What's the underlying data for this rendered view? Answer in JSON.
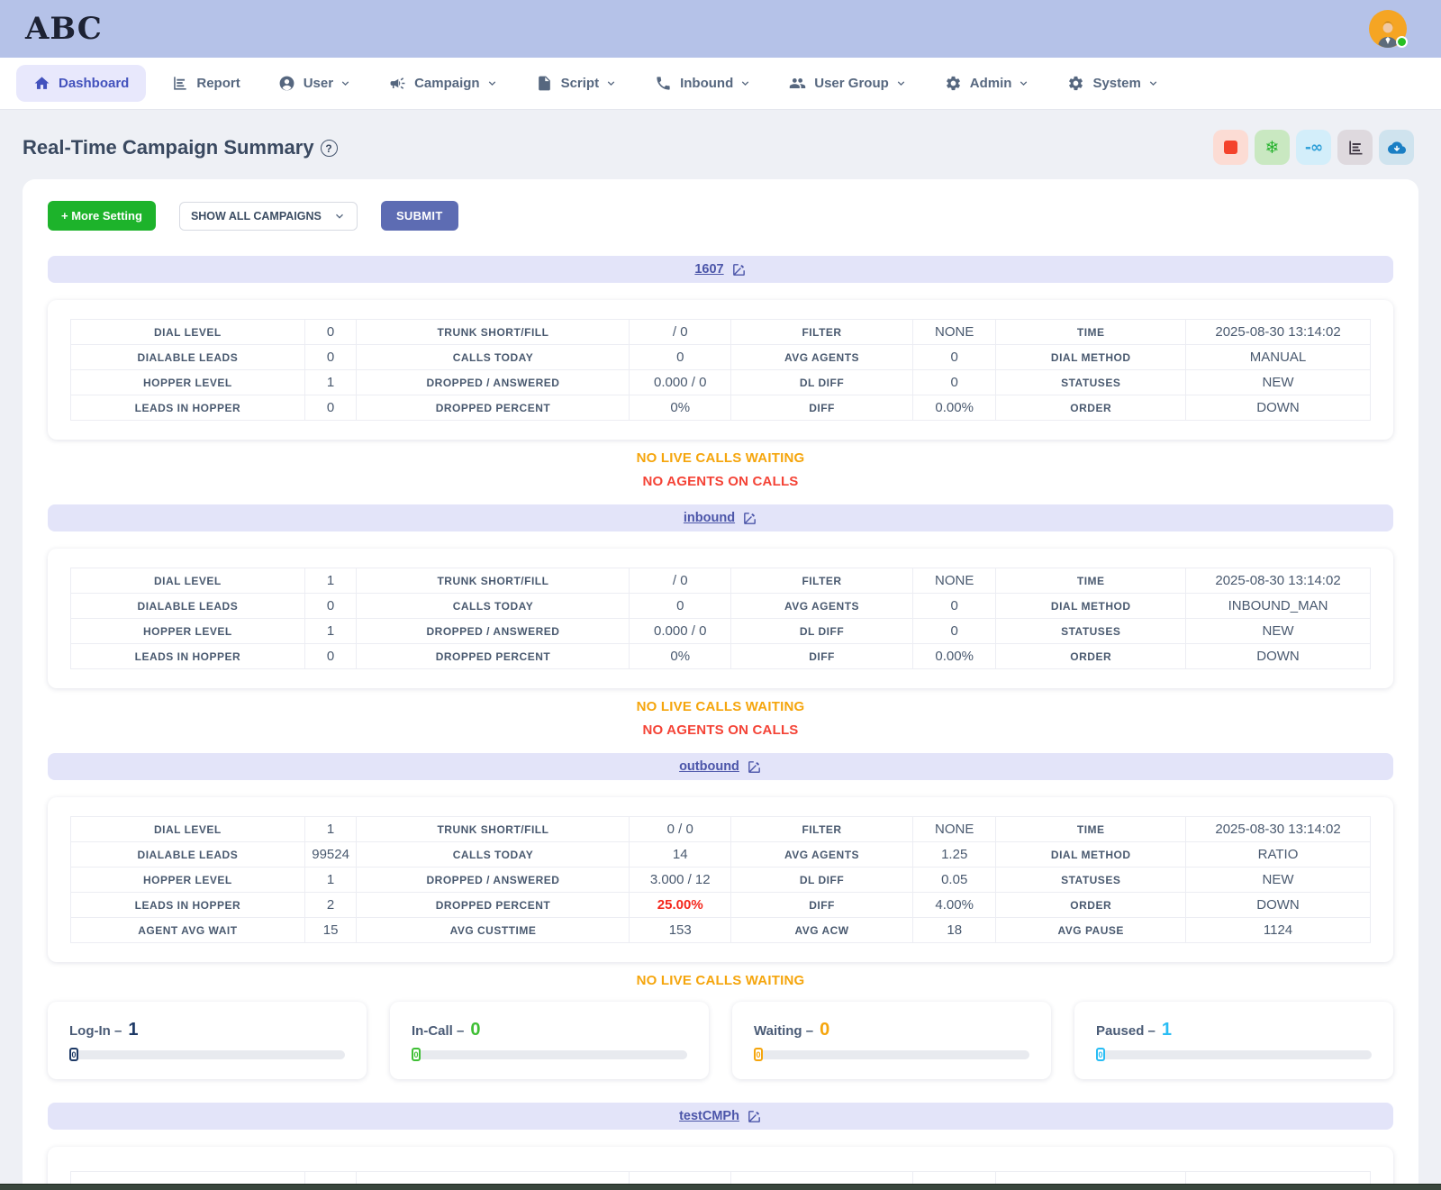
{
  "header": {
    "logo": "ABC"
  },
  "avatar": {
    "status": "online"
  },
  "nav": {
    "items": [
      {
        "label": "Dashboard",
        "icon": "home",
        "active": true,
        "dropdown": false
      },
      {
        "label": "Report",
        "icon": "report-chart",
        "active": false,
        "dropdown": false
      },
      {
        "label": "User",
        "icon": "user",
        "active": false,
        "dropdown": true
      },
      {
        "label": "Campaign",
        "icon": "megaphone",
        "active": false,
        "dropdown": true
      },
      {
        "label": "Script",
        "icon": "file",
        "active": false,
        "dropdown": true
      },
      {
        "label": "Inbound",
        "icon": "phone",
        "active": false,
        "dropdown": true
      },
      {
        "label": "User Group",
        "icon": "users",
        "active": false,
        "dropdown": true
      },
      {
        "label": "Admin",
        "icon": "gear",
        "active": false,
        "dropdown": true
      },
      {
        "label": "System",
        "icon": "gear",
        "active": false,
        "dropdown": true
      }
    ]
  },
  "page": {
    "title": "Real-Time Campaign Summary"
  },
  "toolbar": {
    "more_setting": "+ More Setting",
    "campaign_filter": "SHOW ALL CAMPAIGNS",
    "submit": "SUBMIT"
  },
  "action_buttons": [
    {
      "name": "stop",
      "bg": "#fcdcd4"
    },
    {
      "name": "snowflake",
      "bg": "#c9e8c1",
      "glyph": "❄"
    },
    {
      "name": "go-infinity",
      "bg": "#d3eefa",
      "glyph": "-∞"
    },
    {
      "name": "chart",
      "bg": "#ded9de"
    },
    {
      "name": "cloud-download",
      "bg": "#cfe3ee"
    }
  ],
  "colors": {
    "status_orange": "#f5a50c",
    "status_red": "#f44336",
    "highlight_red": "#f4271c",
    "bar_accent": "#4b55a9"
  },
  "campaigns": [
    {
      "name": "1607",
      "rows": [
        [
          "DIAL LEVEL",
          "0",
          "TRUNK SHORT/FILL",
          "/ 0",
          "FILTER",
          "NONE",
          "TIME",
          "2025-08-30 13:14:02"
        ],
        [
          "DIALABLE LEADS",
          "0",
          "CALLS TODAY",
          "0",
          "AVG AGENTS",
          "0",
          "DIAL METHOD",
          "MANUAL"
        ],
        [
          "HOPPER LEVEL",
          "1",
          "DROPPED / ANSWERED",
          "0.000 / 0",
          "DL DIFF",
          "0",
          "STATUSES",
          "NEW"
        ],
        [
          "LEADS IN HOPPER",
          "0",
          "DROPPED PERCENT",
          "0%",
          "DIFF",
          "0.00%",
          "ORDER",
          "DOWN"
        ]
      ],
      "statuses": [
        {
          "text": "NO LIVE CALLS WAITING",
          "color": "#f5a50c"
        },
        {
          "text": "NO AGENTS ON CALLS",
          "color": "#f44336"
        }
      ]
    },
    {
      "name": "inbound",
      "rows": [
        [
          "DIAL LEVEL",
          "1",
          "TRUNK SHORT/FILL",
          "/ 0",
          "FILTER",
          "NONE",
          "TIME",
          "2025-08-30 13:14:02"
        ],
        [
          "DIALABLE LEADS",
          "0",
          "CALLS TODAY",
          "0",
          "AVG AGENTS",
          "0",
          "DIAL METHOD",
          "INBOUND_MAN"
        ],
        [
          "HOPPER LEVEL",
          "1",
          "DROPPED / ANSWERED",
          "0.000 / 0",
          "DL DIFF",
          "0",
          "STATUSES",
          "NEW"
        ],
        [
          "LEADS IN HOPPER",
          "0",
          "DROPPED PERCENT",
          "0%",
          "DIFF",
          "0.00%",
          "ORDER",
          "DOWN"
        ]
      ],
      "statuses": [
        {
          "text": "NO LIVE CALLS WAITING",
          "color": "#f5a50c"
        },
        {
          "text": "NO AGENTS ON CALLS",
          "color": "#f44336"
        }
      ]
    },
    {
      "name": "outbound",
      "rows": [
        [
          "DIAL LEVEL",
          "1",
          "TRUNK SHORT/FILL",
          "0 / 0",
          "FILTER",
          "NONE",
          "TIME",
          "2025-08-30 13:14:02"
        ],
        [
          "DIALABLE LEADS",
          "99524",
          "CALLS TODAY",
          "14",
          "AVG AGENTS",
          "1.25",
          "DIAL METHOD",
          "RATIO"
        ],
        [
          "HOPPER LEVEL",
          "1",
          "DROPPED / ANSWERED",
          "3.000 / 12",
          "DL DIFF",
          "0.05",
          "STATUSES",
          "NEW"
        ],
        [
          "LEADS IN HOPPER",
          "2",
          "DROPPED PERCENT",
          {
            "t": "25.00%",
            "c": "red"
          },
          "DIFF",
          "4.00%",
          "ORDER",
          "DOWN"
        ],
        [
          "AGENT AVG WAIT",
          "15",
          "AVG CUSTTIME",
          "153",
          "AVG ACW",
          "18",
          "AVG PAUSE",
          "1124"
        ]
      ],
      "statuses": [
        {
          "text": "NO LIVE CALLS WAITING",
          "color": "#f5a50c"
        }
      ]
    },
    {
      "name": "testCMPh",
      "rows": [
        [
          "",
          "",
          "",
          "",
          "",
          "",
          "",
          ""
        ]
      ]
    }
  ],
  "agent_cards": [
    {
      "label": "Log-In –",
      "value": "1",
      "marker": "0",
      "color": "#1e3a66"
    },
    {
      "label": "In-Call –",
      "value": "0",
      "marker": "0",
      "color": "#3fbf35"
    },
    {
      "label": "Waiting –",
      "value": "0",
      "marker": "0",
      "color": "#f5a50c"
    },
    {
      "label": "Paused –",
      "value": "1",
      "marker": "0",
      "color": "#29bdf4"
    }
  ]
}
